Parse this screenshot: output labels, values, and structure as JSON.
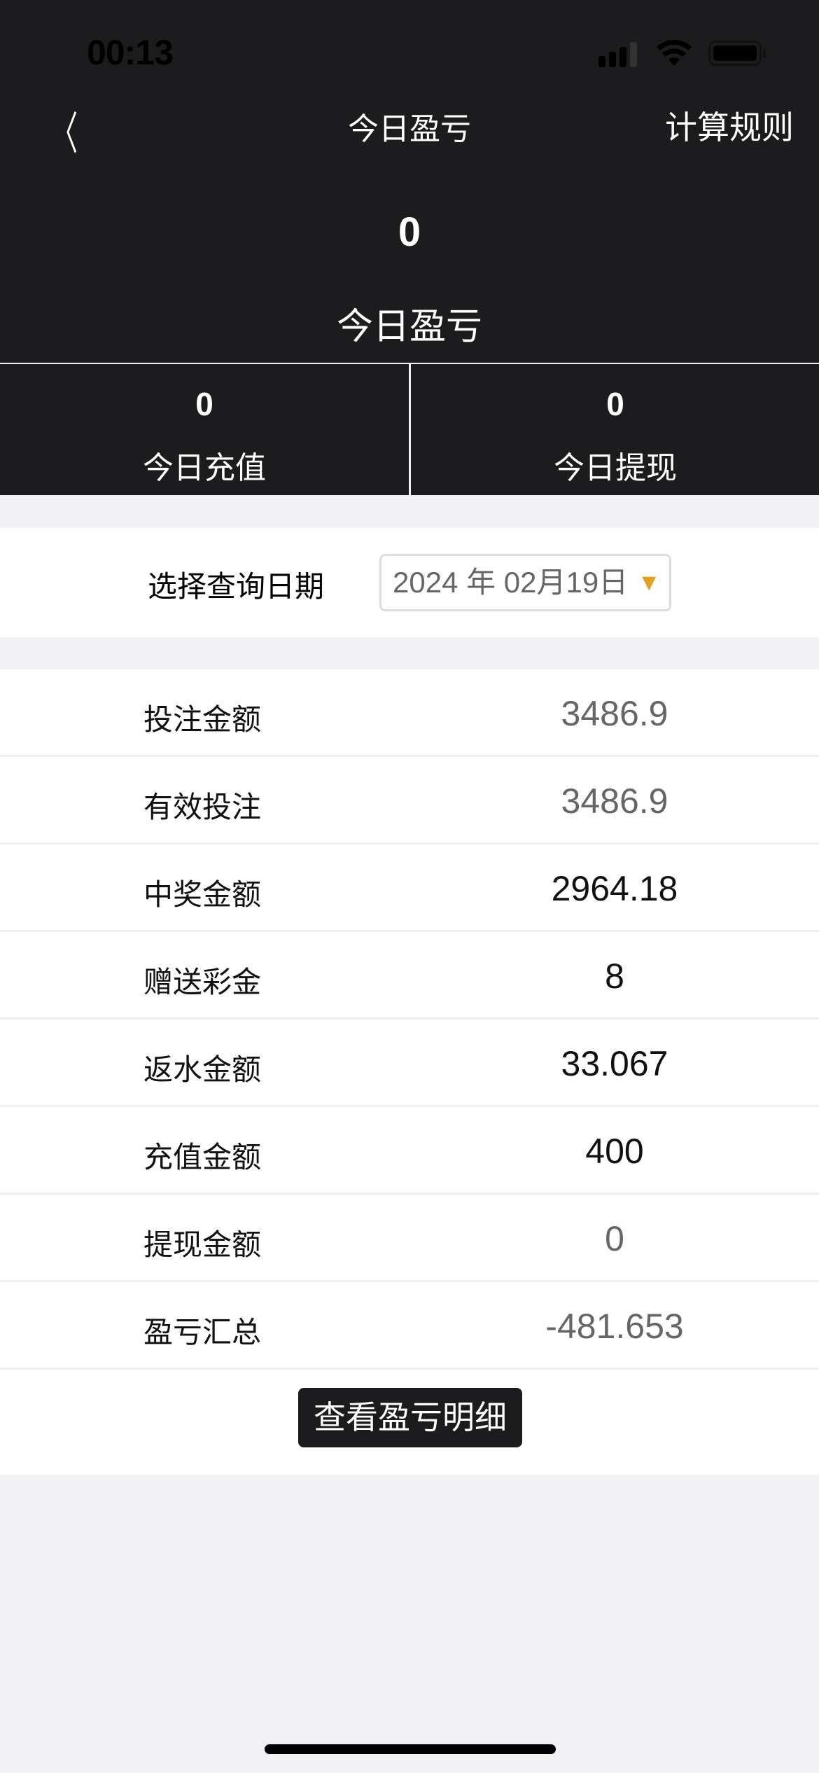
{
  "status_bar": {
    "time": "00:13",
    "icons": [
      "cellular-signal-icon",
      "wifi-icon",
      "battery-icon"
    ]
  },
  "nav": {
    "back_icon": "chevron-left-icon",
    "title": "今日盈亏",
    "right_label": "计算规则"
  },
  "summary": {
    "value": "0",
    "label": "今日盈亏"
  },
  "sub_stats": [
    {
      "value": "0",
      "label": "今日充值"
    },
    {
      "value": "0",
      "label": "今日提现"
    }
  ],
  "date_filter": {
    "label": "选择查询日期",
    "value": "2024 年 02月19日",
    "arrow": "▼",
    "arrow_color": "#e0a224"
  },
  "rows": [
    {
      "label": "投注金额",
      "value": "3486.9",
      "color": "#666666"
    },
    {
      "label": "有效投注",
      "value": "3486.9",
      "color": "#666666"
    },
    {
      "label": "中奖金额",
      "value": "2964.18",
      "color": "#111111"
    },
    {
      "label": "赠送彩金",
      "value": "8",
      "color": "#111111"
    },
    {
      "label": "返水金额",
      "value": "33.067",
      "color": "#111111"
    },
    {
      "label": "充值金额",
      "value": "400",
      "color": "#111111"
    },
    {
      "label": "提现金额",
      "value": "0",
      "color": "#666666"
    },
    {
      "label": "盈亏汇总",
      "value": "-481.653",
      "color": "#666666"
    }
  ],
  "detail_button": "查看盈亏明细"
}
